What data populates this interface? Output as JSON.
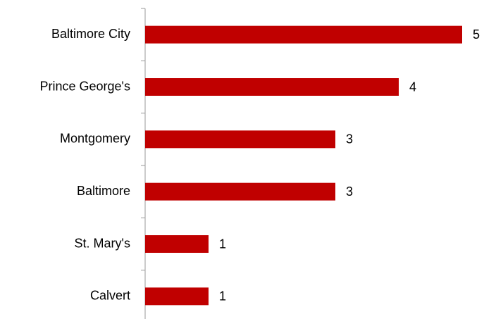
{
  "chart_data": {
    "type": "bar",
    "orientation": "horizontal",
    "categories": [
      "Baltimore City",
      "Prince George's",
      "Montgomery",
      "Baltimore",
      "St. Mary's",
      "Calvert"
    ],
    "values": [
      5,
      4,
      3,
      3,
      1,
      1
    ],
    "color": "#c00000",
    "data_labels": true
  }
}
